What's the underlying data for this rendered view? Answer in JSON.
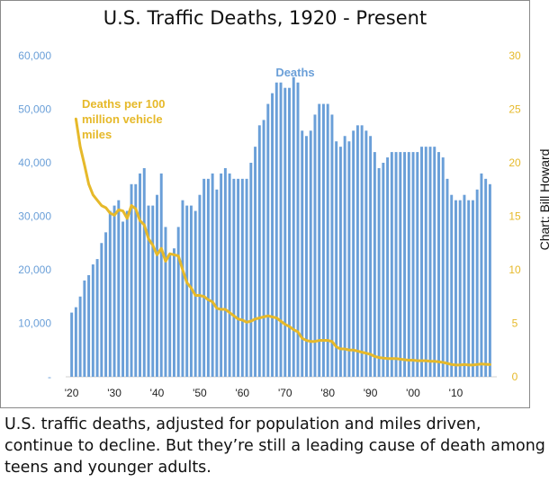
{
  "credit": "Chart: Bill Howard",
  "caption": "U.S. traffic deaths, adjusted for population and miles driven, continue to decline. But they’re still a leading cause of death among teens and younger adults.",
  "colors": {
    "bars": "#6a9fd8",
    "line": "#e6b92a",
    "left_axis": "#6a9fd8",
    "right_axis": "#e6b92a"
  },
  "chart_data": {
    "type": "bar",
    "title": "U.S. Traffic Deaths, 1920 - Present",
    "x_tick_labels": [
      "'20",
      "'30",
      "'40",
      "'50",
      "'60",
      "'70",
      "'80",
      "'90",
      "'00",
      "'10"
    ],
    "x_tick_years": [
      1920,
      1930,
      1940,
      1950,
      1960,
      1970,
      1980,
      1990,
      2000,
      2010
    ],
    "left_axis": {
      "ticks": [
        "-",
        "10,000",
        "20,000",
        "30,000",
        "40,000",
        "50,000",
        "60,000"
      ],
      "ylim": [
        0,
        60000
      ]
    },
    "right_axis": {
      "ticks": [
        "0",
        "5",
        "10",
        "15",
        "20",
        "25",
        "30"
      ],
      "ylim": [
        0,
        30
      ]
    },
    "series": [
      {
        "name": "Deaths",
        "axis": "left",
        "kind": "bar",
        "label": "Deaths",
        "x": [
          1920,
          1921,
          1922,
          1923,
          1924,
          1925,
          1926,
          1927,
          1928,
          1929,
          1930,
          1931,
          1932,
          1933,
          1934,
          1935,
          1936,
          1937,
          1938,
          1939,
          1940,
          1941,
          1942,
          1943,
          1944,
          1945,
          1946,
          1947,
          1948,
          1949,
          1950,
          1951,
          1952,
          1953,
          1954,
          1955,
          1956,
          1957,
          1958,
          1959,
          1960,
          1961,
          1962,
          1963,
          1964,
          1965,
          1966,
          1967,
          1968,
          1969,
          1970,
          1971,
          1972,
          1973,
          1974,
          1975,
          1976,
          1977,
          1978,
          1979,
          1980,
          1981,
          1982,
          1983,
          1984,
          1985,
          1986,
          1987,
          1988,
          1989,
          1990,
          1991,
          1992,
          1993,
          1994,
          1995,
          1996,
          1997,
          1998,
          1999,
          2000,
          2001,
          2002,
          2003,
          2004,
          2005,
          2006,
          2007,
          2008,
          2009,
          2010,
          2011,
          2012,
          2013,
          2014,
          2015,
          2016,
          2017,
          2018
        ],
        "values": [
          12000,
          13000,
          15000,
          18000,
          19000,
          21000,
          22000,
          25000,
          27000,
          31000,
          32000,
          33000,
          29000,
          31000,
          36000,
          36000,
          38000,
          39000,
          32000,
          32000,
          34000,
          38000,
          28000,
          23000,
          24000,
          28000,
          33000,
          32000,
          32000,
          31000,
          34000,
          37000,
          37000,
          38000,
          35000,
          38000,
          39000,
          38000,
          37000,
          37000,
          37000,
          37000,
          40000,
          43000,
          47000,
          48000,
          51000,
          53000,
          55000,
          55000,
          54000,
          54000,
          56000,
          55000,
          46000,
          45000,
          46000,
          49000,
          51000,
          51000,
          51000,
          49000,
          44000,
          43000,
          45000,
          44000,
          46000,
          47000,
          47000,
          46000,
          45000,
          42000,
          39000,
          40000,
          41000,
          42000,
          42000,
          42000,
          42000,
          42000,
          42000,
          42000,
          43000,
          43000,
          43000,
          43000,
          42000,
          41000,
          37000,
          34000,
          33000,
          33000,
          34000,
          33000,
          33000,
          35000,
          38000,
          37000,
          36000
        ]
      },
      {
        "name": "Deaths per 100 million vehicle miles",
        "axis": "right",
        "kind": "line",
        "label": [
          "Deaths per 100",
          "million vehicle",
          "miles"
        ],
        "x": [
          1921,
          1922,
          1923,
          1924,
          1925,
          1926,
          1927,
          1928,
          1929,
          1930,
          1931,
          1932,
          1933,
          1934,
          1935,
          1936,
          1937,
          1938,
          1939,
          1940,
          1941,
          1942,
          1943,
          1944,
          1945,
          1946,
          1947,
          1948,
          1949,
          1950,
          1951,
          1952,
          1953,
          1954,
          1955,
          1956,
          1957,
          1958,
          1959,
          1960,
          1961,
          1962,
          1963,
          1964,
          1965,
          1966,
          1967,
          1968,
          1969,
          1970,
          1971,
          1972,
          1973,
          1974,
          1975,
          1976,
          1977,
          1978,
          1979,
          1980,
          1981,
          1982,
          1983,
          1984,
          1985,
          1986,
          1987,
          1988,
          1989,
          1990,
          1991,
          1992,
          1993,
          1994,
          1995,
          1996,
          1997,
          1998,
          1999,
          2000,
          2001,
          2002,
          2003,
          2004,
          2005,
          2006,
          2007,
          2008,
          2009,
          2010,
          2011,
          2012,
          2013,
          2014,
          2015,
          2016,
          2017,
          2018
        ],
        "values": [
          24.1,
          21.5,
          19.8,
          18.0,
          17.0,
          16.5,
          16.0,
          15.8,
          15.3,
          15.1,
          15.6,
          15.5,
          14.8,
          16.0,
          15.7,
          14.6,
          14.2,
          12.9,
          12.3,
          11.4,
          12.0,
          10.8,
          11.5,
          11.4,
          11.3,
          10.0,
          8.8,
          8.3,
          7.6,
          7.6,
          7.5,
          7.2,
          7.0,
          6.4,
          6.3,
          6.3,
          6.0,
          5.7,
          5.4,
          5.3,
          5.1,
          5.2,
          5.4,
          5.5,
          5.6,
          5.7,
          5.6,
          5.5,
          5.2,
          4.9,
          4.7,
          4.4,
          4.2,
          3.6,
          3.4,
          3.3,
          3.3,
          3.4,
          3.4,
          3.4,
          3.3,
          2.8,
          2.6,
          2.6,
          2.5,
          2.5,
          2.4,
          2.3,
          2.2,
          2.1,
          1.9,
          1.8,
          1.75,
          1.7,
          1.7,
          1.7,
          1.65,
          1.6,
          1.55,
          1.55,
          1.5,
          1.5,
          1.5,
          1.45,
          1.45,
          1.4,
          1.35,
          1.25,
          1.15,
          1.1,
          1.1,
          1.15,
          1.1,
          1.1,
          1.15,
          1.2,
          1.17,
          1.14
        ]
      }
    ]
  }
}
